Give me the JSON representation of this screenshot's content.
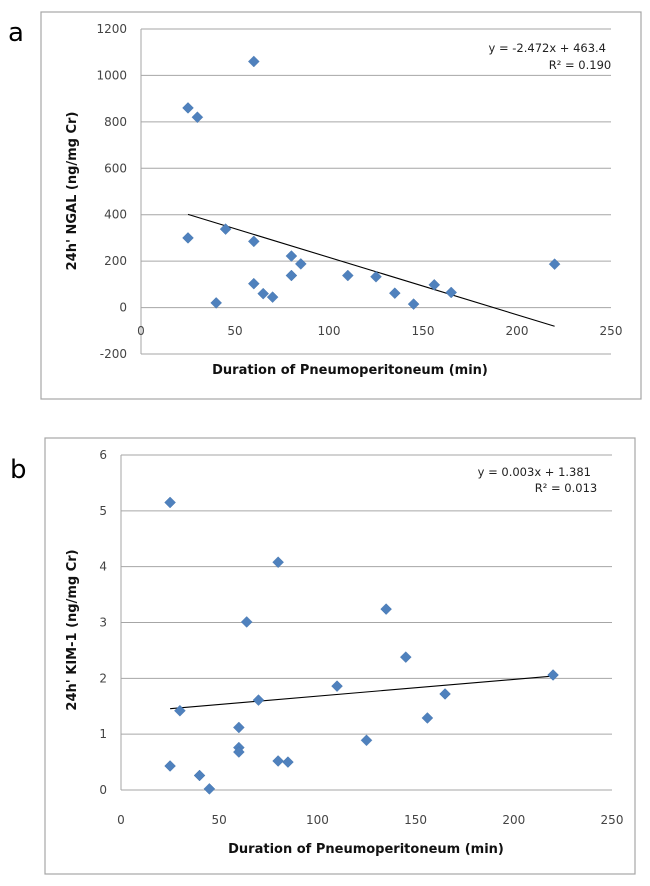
{
  "chart_data": [
    {
      "panel": "a",
      "type": "scatter",
      "xlabel": "Duration of Pneumoperitoneum (min)",
      "ylabel": "24h' NGAL (ng/mg Cr)",
      "xlim": [
        0,
        250
      ],
      "ylim": [
        -200,
        1200
      ],
      "xticks": [
        "0",
        "50",
        "100",
        "150",
        "200",
        "250"
      ],
      "yticks": [
        "-200",
        "0",
        "200",
        "400",
        "600",
        "800",
        "1000",
        "1200"
      ],
      "xtick_values": [
        0,
        50,
        100,
        150,
        200,
        250
      ],
      "ytick_values": [
        -200,
        0,
        200,
        400,
        600,
        800,
        1000,
        1200
      ],
      "grid": "horizontal",
      "marker_color": "#4F81BD",
      "points": [
        [
          25,
          860
        ],
        [
          30,
          820
        ],
        [
          60,
          1060
        ],
        [
          25,
          300
        ],
        [
          45,
          338
        ],
        [
          60,
          285
        ],
        [
          40,
          20
        ],
        [
          60,
          103
        ],
        [
          65,
          60
        ],
        [
          70,
          45
        ],
        [
          80,
          222
        ],
        [
          80,
          138
        ],
        [
          85,
          188
        ],
        [
          110,
          138
        ],
        [
          125,
          133
        ],
        [
          135,
          62
        ],
        [
          145,
          15
        ],
        [
          156,
          98
        ],
        [
          165,
          65
        ],
        [
          220,
          187
        ]
      ],
      "trendline": {
        "slope": -2.472,
        "intercept": 463.4,
        "x_range": [
          25,
          220
        ]
      },
      "equation": "y = -2.472x + 463.4",
      "r_squared": "R² = 0.190"
    },
    {
      "panel": "b",
      "type": "scatter",
      "xlabel": "Duration of Pneumoperitoneum (min)",
      "ylabel": "24h' KIM-1 (ng/mg Cr)",
      "xlim": [
        0,
        250
      ],
      "ylim": [
        0,
        6
      ],
      "xticks": [
        "0",
        "50",
        "100",
        "150",
        "200",
        "250"
      ],
      "yticks": [
        "0",
        "1",
        "2",
        "3",
        "4",
        "5",
        "6"
      ],
      "xtick_values": [
        0,
        50,
        100,
        150,
        200,
        250
      ],
      "ytick_values": [
        0,
        1,
        2,
        3,
        4,
        5,
        6
      ],
      "grid": "horizontal",
      "marker_color": "#4F81BD",
      "points": [
        [
          25,
          5.15
        ],
        [
          25,
          0.43
        ],
        [
          30,
          1.42
        ],
        [
          40,
          0.26
        ],
        [
          45,
          0.02
        ],
        [
          60,
          1.12
        ],
        [
          60,
          0.76
        ],
        [
          60,
          0.68
        ],
        [
          64,
          3.01
        ],
        [
          70,
          1.61
        ],
        [
          80,
          4.08
        ],
        [
          80,
          0.52
        ],
        [
          85,
          0.5
        ],
        [
          110,
          1.86
        ],
        [
          125,
          0.89
        ],
        [
          135,
          3.24
        ],
        [
          145,
          2.38
        ],
        [
          156,
          1.29
        ],
        [
          165,
          1.72
        ],
        [
          220,
          2.06
        ]
      ],
      "trendline": {
        "slope": 0.003,
        "intercept": 1.381,
        "x_range": [
          25,
          220
        ]
      },
      "equation": "y = 0.003x + 1.381",
      "r_squared": "R² = 0.013"
    }
  ]
}
